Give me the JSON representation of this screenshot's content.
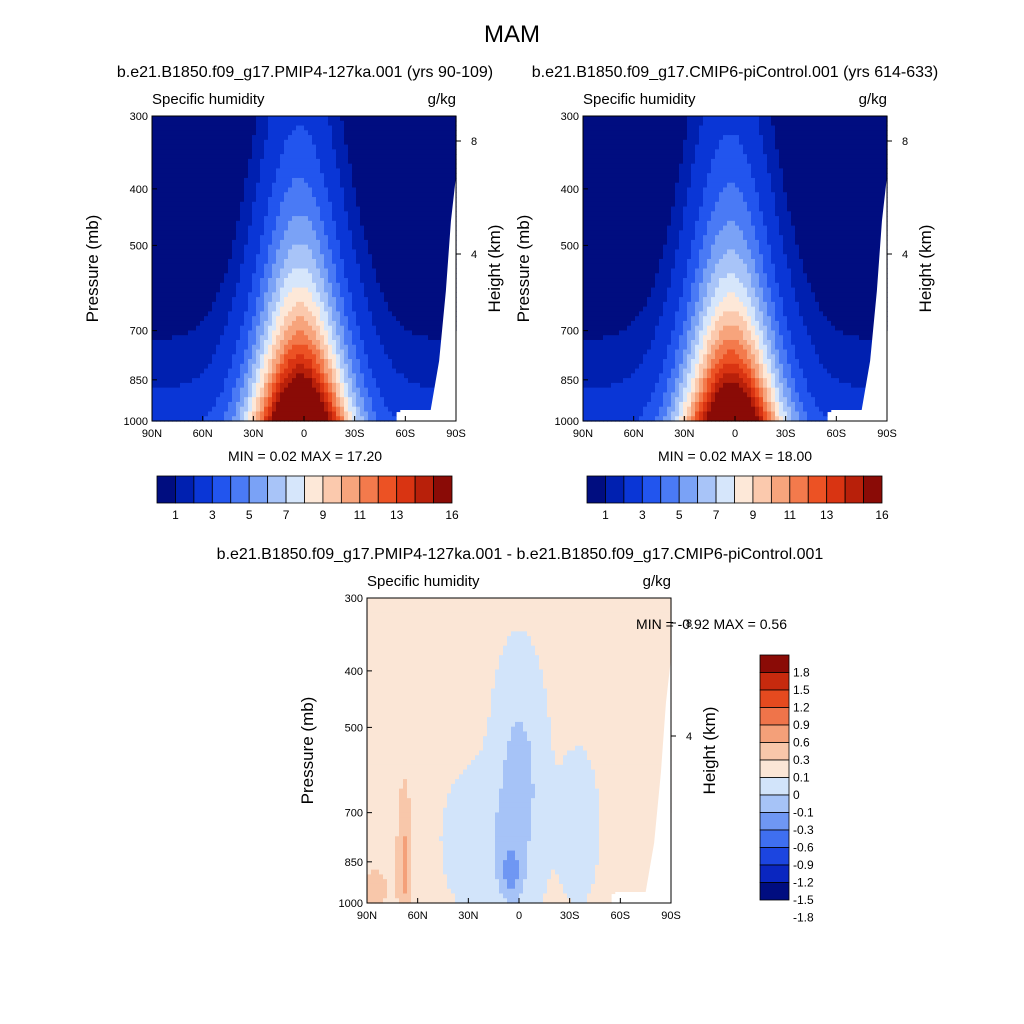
{
  "figure": {
    "title": "MAM"
  },
  "colors": {
    "cmap_abs": [
      "#000d80",
      "#0020b0",
      "#0a36d6",
      "#2255ee",
      "#4a7af5",
      "#7aa2f6",
      "#a8c4f8",
      "#d6e6fb",
      "#fde8d8",
      "#fbc9ad",
      "#f7a47c",
      "#f37a4c",
      "#ec5224",
      "#d93412",
      "#b8200a",
      "#8a0b06"
    ],
    "cmap_diff": [
      "#000d80",
      "#0a26c0",
      "#1c45e0",
      "#3f6ff0",
      "#6f97f3",
      "#a6c3f7",
      "#d2e4fa",
      "#fbe6d6",
      "#f8c7aa",
      "#f4a079",
      "#ef744a",
      "#e54a1f",
      "#c72a0e",
      "#8a0b06"
    ]
  },
  "chart_data": [
    {
      "type": "heatmap",
      "panel": "top-left",
      "title": "b.e21.B1850.f09_g17.PMIP4-127ka.001 (yrs 90-109)",
      "left_label": "Specific humidity",
      "right_label": "g/kg",
      "ylabel": "Pressure (mb)",
      "y2label": "Height (km)",
      "xticks": [
        "90N",
        "60N",
        "30N",
        "0",
        "30S",
        "60S",
        "90S"
      ],
      "yticks": [
        "300",
        "400",
        "500",
        "700",
        "850",
        "1000"
      ],
      "y2ticks": [
        "8",
        "4"
      ],
      "stats": "MIN =   0.02  MAX =  17.20",
      "min": 0.02,
      "max": 17.2,
      "colorbar_labels": [
        "1",
        "3",
        "5",
        "7",
        "9",
        "11",
        "13",
        "16"
      ],
      "ylim": [
        1000,
        300
      ],
      "xlim": [
        90,
        -90
      ],
      "contour_levels": [
        0.5,
        1,
        2,
        3,
        4,
        5,
        6,
        7,
        8,
        9,
        10,
        11,
        12,
        13,
        14,
        16
      ]
    },
    {
      "type": "heatmap",
      "panel": "top-right",
      "title": "b.e21.B1850.f09_g17.CMIP6-piControl.001 (yrs 614-633)",
      "left_label": "Specific humidity",
      "right_label": "g/kg",
      "ylabel": "Pressure (mb)",
      "y2label": "Height (km)",
      "xticks": [
        "90N",
        "60N",
        "30N",
        "0",
        "30S",
        "60S",
        "90S"
      ],
      "yticks": [
        "300",
        "400",
        "500",
        "700",
        "850",
        "1000"
      ],
      "y2ticks": [
        "8",
        "4"
      ],
      "stats": "MIN =   0.02  MAX =  18.00",
      "min": 0.02,
      "max": 18.0,
      "colorbar_labels": [
        "1",
        "3",
        "5",
        "7",
        "9",
        "11",
        "13",
        "16"
      ],
      "ylim": [
        1000,
        300
      ],
      "xlim": [
        90,
        -90
      ],
      "contour_levels": [
        0.5,
        1,
        2,
        3,
        4,
        5,
        6,
        7,
        8,
        9,
        10,
        11,
        12,
        13,
        14,
        16
      ]
    },
    {
      "type": "heatmap",
      "panel": "bottom",
      "title": "b.e21.B1850.f09_g17.PMIP4-127ka.001 - b.e21.B1850.f09_g17.CMIP6-piControl.001",
      "left_label": "Specific humidity",
      "right_label": "g/kg",
      "ylabel": "Pressure (mb)",
      "y2label": "Height (km)",
      "xticks": [
        "90N",
        "60N",
        "30N",
        "0",
        "30S",
        "60S",
        "90S"
      ],
      "yticks": [
        "300",
        "400",
        "500",
        "700",
        "850",
        "1000"
      ],
      "y2ticks": [
        "8",
        "4"
      ],
      "stats": "MIN =  -0.92  MAX =   0.56",
      "min": -0.92,
      "max": 0.56,
      "colorbar_labels": [
        "1.8",
        "1.5",
        "1.2",
        "0.9",
        "0.6",
        "0.3",
        "0.1",
        "0",
        "-0.1",
        "-0.3",
        "-0.6",
        "-0.9",
        "-1.2",
        "-1.5",
        "-1.8"
      ],
      "ylim": [
        1000,
        300
      ],
      "xlim": [
        90,
        -90
      ],
      "contour_levels": [
        -1.8,
        -1.5,
        -1.2,
        -0.9,
        -0.6,
        -0.3,
        -0.1,
        0,
        0.1,
        0.3,
        0.6,
        0.9,
        1.2,
        1.5,
        1.8
      ]
    }
  ]
}
